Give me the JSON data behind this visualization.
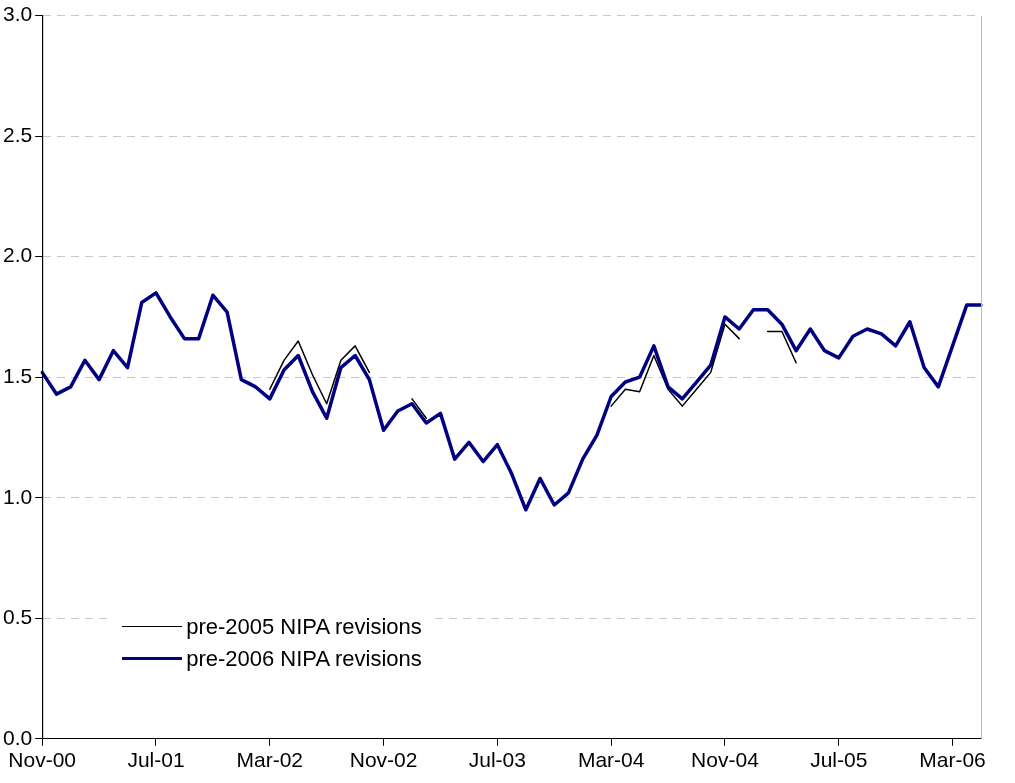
{
  "chart_data": {
    "type": "line",
    "categories": [
      "Nov-00",
      null,
      null,
      null,
      null,
      null,
      null,
      null,
      "Jul-01",
      null,
      null,
      null,
      null,
      null,
      null,
      null,
      "Mar-02",
      null,
      null,
      null,
      null,
      null,
      null,
      null,
      "Nov-02",
      null,
      null,
      null,
      null,
      null,
      null,
      null,
      "Jul-03",
      null,
      null,
      null,
      null,
      null,
      null,
      null,
      "Mar-04",
      null,
      null,
      null,
      null,
      null,
      null,
      null,
      "Nov-04",
      null,
      null,
      null,
      null,
      null,
      null,
      null,
      "Jul-05",
      null,
      null,
      null,
      null,
      null,
      null,
      null,
      "Mar-06",
      null,
      null
    ],
    "series": [
      {
        "name": "pre-2005 NIPA revisions",
        "color": "#000000",
        "values": [
          null,
          null,
          null,
          null,
          null,
          null,
          null,
          null,
          null,
          null,
          null,
          null,
          null,
          null,
          null,
          null,
          1.45,
          1.57,
          1.65,
          1.51,
          1.39,
          1.57,
          1.63,
          1.52,
          null,
          null,
          1.41,
          1.33,
          null,
          null,
          null,
          null,
          null,
          null,
          null,
          null,
          null,
          null,
          null,
          null,
          1.38,
          1.45,
          1.44,
          1.59,
          1.45,
          1.38,
          1.45,
          1.52,
          1.72,
          1.66,
          null,
          1.69,
          1.69,
          1.56,
          null,
          null,
          null,
          null,
          null,
          null,
          null,
          null,
          null,
          null,
          null,
          null,
          null
        ]
      },
      {
        "name": "pre-2006 NIPA revisions",
        "color": "#000080",
        "values": [
          1.52,
          1.43,
          1.46,
          1.57,
          1.49,
          1.61,
          1.54,
          1.81,
          1.85,
          1.75,
          1.66,
          1.66,
          1.84,
          1.77,
          1.49,
          1.46,
          1.41,
          1.53,
          1.59,
          1.44,
          1.33,
          1.54,
          1.59,
          1.49,
          1.28,
          1.36,
          1.39,
          1.31,
          1.35,
          1.16,
          1.23,
          1.15,
          1.22,
          1.1,
          0.95,
          1.08,
          0.97,
          1.02,
          1.16,
          1.26,
          1.42,
          1.48,
          1.5,
          1.63,
          1.46,
          1.41,
          1.48,
          1.55,
          1.75,
          1.7,
          1.78,
          1.78,
          1.72,
          1.61,
          1.7,
          1.61,
          1.58,
          1.67,
          1.7,
          1.68,
          1.63,
          1.73,
          1.54,
          1.46,
          1.63,
          1.8,
          1.8
        ]
      }
    ],
    "ylim": [
      0,
      3
    ],
    "yticks": [
      {
        "value": 0,
        "label": "0.0"
      },
      0.5,
      {
        "value": 1,
        "label": "1.0"
      },
      1.5,
      {
        "value": 2,
        "label": "2.0"
      },
      2.5,
      {
        "value": 3,
        "label": "3.0"
      }
    ],
    "grid": "y",
    "legend": "bottom left",
    "marker": "none",
    "line_style": "solid"
  }
}
